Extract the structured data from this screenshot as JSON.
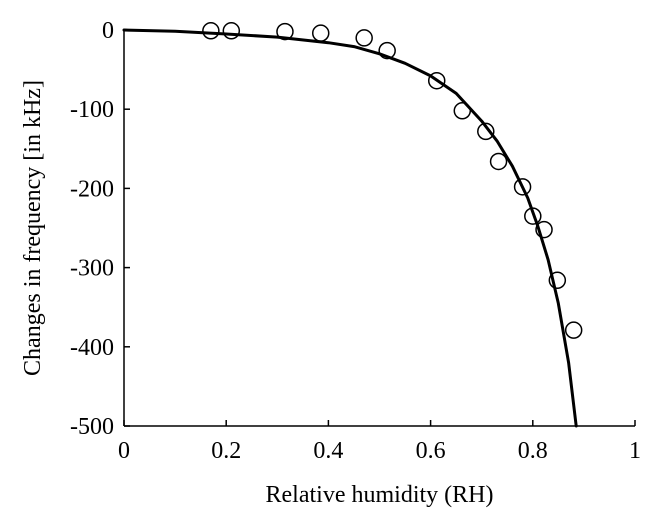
{
  "chart_data": {
    "type": "scatter",
    "title": "",
    "xlabel": "Relative humidity (RH)",
    "ylabel": "Changes in frequency [in kHz]",
    "xlim": [
      0,
      1
    ],
    "ylim": [
      -500,
      0
    ],
    "xticks": [
      0,
      0.2,
      0.4,
      0.6,
      0.8,
      1
    ],
    "xtick_labels": [
      "0",
      "0.2",
      "0.4",
      "0.6",
      "0.8",
      "1"
    ],
    "yticks": [
      0,
      -100,
      -200,
      -300,
      -400,
      -500
    ],
    "ytick_labels": [
      "0",
      "-100",
      "-200",
      "-300",
      "-400",
      "-500"
    ],
    "grid": false,
    "legend": "none",
    "colors": {
      "axis": "#000000",
      "series": "#000000",
      "background": "#ffffff"
    },
    "series": [
      {
        "kind": "markers",
        "marker": "open-circle",
        "x": [
          0.17,
          0.21,
          0.315,
          0.385,
          0.47,
          0.515,
          0.612,
          0.662,
          0.708,
          0.733,
          0.78,
          0.8,
          0.822,
          0.848,
          0.88
        ],
        "y": [
          -1,
          -1,
          -2,
          -4,
          -10,
          -26,
          -64,
          -102,
          -128,
          -166,
          -198,
          -235,
          -252,
          -316,
          -379
        ]
      },
      {
        "kind": "fit-line",
        "x": [
          0,
          0.1,
          0.2,
          0.3,
          0.4,
          0.45,
          0.5,
          0.55,
          0.6,
          0.65,
          0.7,
          0.73,
          0.76,
          0.79,
          0.81,
          0.83,
          0.85,
          0.87,
          0.885
        ],
        "y": [
          0,
          -1.5,
          -5,
          -9,
          -16,
          -21,
          -30,
          -42,
          -58,
          -80,
          -115,
          -140,
          -172,
          -212,
          -248,
          -290,
          -345,
          -420,
          -500
        ]
      }
    ]
  }
}
